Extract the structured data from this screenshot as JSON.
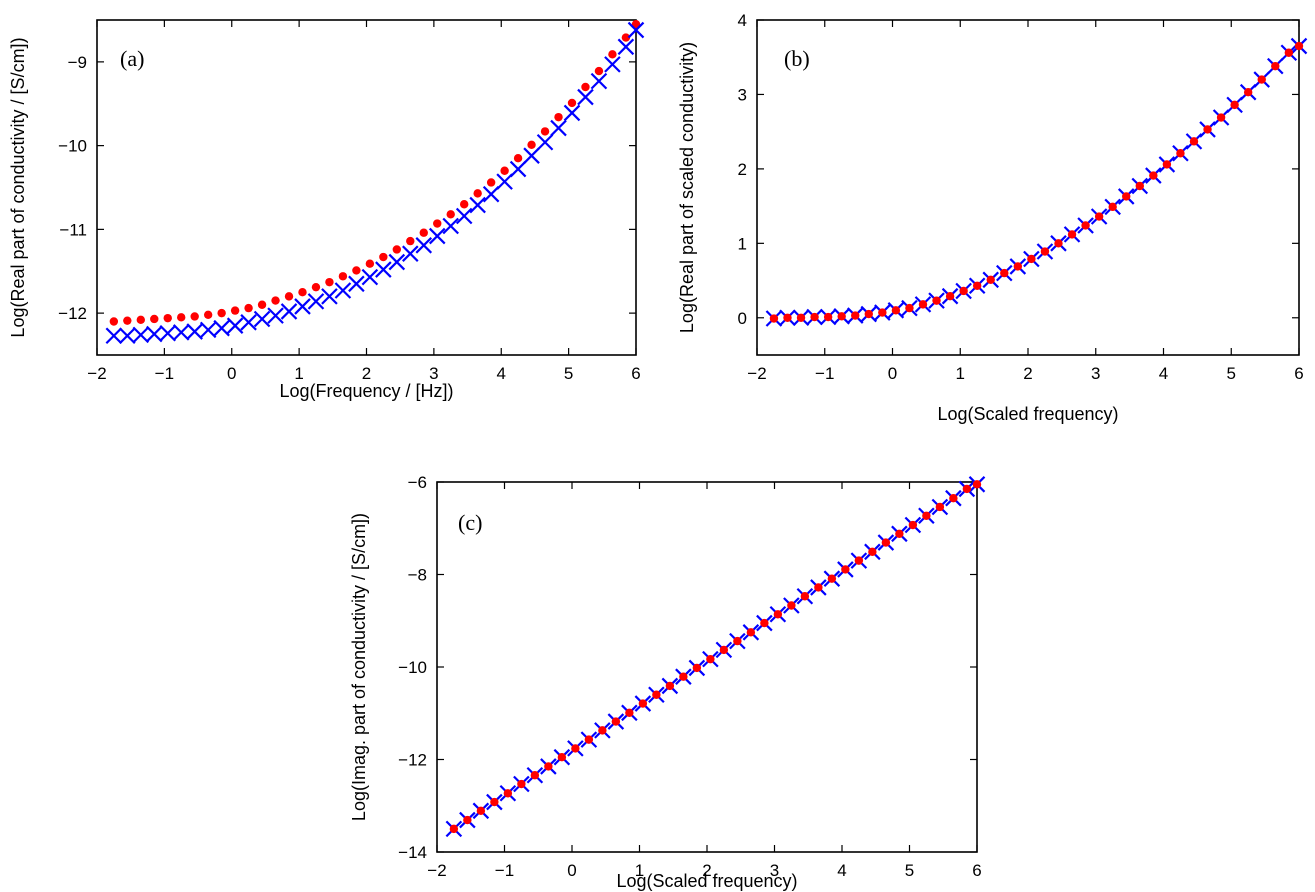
{
  "chart_data": [
    {
      "type": "scatter",
      "panel_label": "(a)",
      "title": "",
      "xlabel": "Log(Frequency / [Hz])",
      "ylabel": "Log(Real part of conductivity / [S/cm])",
      "xlim": [
        -2,
        6
      ],
      "ylim": [
        -12.5,
        -8.5
      ],
      "xticks": [
        "−2",
        "−1",
        "0",
        "1",
        "2",
        "3",
        "4",
        "5",
        "6"
      ],
      "yticks": [
        "−12",
        "−11",
        "−10",
        "−9"
      ],
      "series": [
        {
          "marker": "dot",
          "color": "#ff0000",
          "x": [
            -1.75,
            -1.55,
            -1.35,
            -1.15,
            -0.95,
            -0.75,
            -0.55,
            -0.35,
            -0.15,
            0.05,
            0.25,
            0.45,
            0.65,
            0.85,
            1.05,
            1.25,
            1.45,
            1.65,
            1.85,
            2.05,
            2.25,
            2.45,
            2.65,
            2.85,
            3.05,
            3.25,
            3.45,
            3.65,
            3.85,
            4.05,
            4.25,
            4.45,
            4.65,
            4.85,
            5.05,
            5.25,
            5.45,
            5.65,
            5.85,
            6.0
          ],
          "y": [
            -12.1,
            -12.09,
            -12.08,
            -12.07,
            -12.06,
            -12.05,
            -12.04,
            -12.02,
            -12.0,
            -11.97,
            -11.94,
            -11.9,
            -11.85,
            -11.8,
            -11.75,
            -11.69,
            -11.63,
            -11.56,
            -11.49,
            -11.41,
            -11.33,
            -11.24,
            -11.14,
            -11.04,
            -10.93,
            -10.82,
            -10.7,
            -10.57,
            -10.44,
            -10.3,
            -10.15,
            -9.99,
            -9.83,
            -9.66,
            -9.49,
            -9.3,
            -9.11,
            -8.91,
            -8.71,
            -8.55
          ]
        },
        {
          "marker": "cross",
          "color": "#0000ff",
          "x": [
            -1.75,
            -1.55,
            -1.35,
            -1.15,
            -0.95,
            -0.75,
            -0.55,
            -0.35,
            -0.15,
            0.05,
            0.25,
            0.45,
            0.65,
            0.85,
            1.05,
            1.25,
            1.45,
            1.65,
            1.85,
            2.05,
            2.25,
            2.45,
            2.65,
            2.85,
            3.05,
            3.25,
            3.45,
            3.65,
            3.85,
            4.05,
            4.25,
            4.45,
            4.65,
            4.85,
            5.05,
            5.25,
            5.45,
            5.65,
            5.85,
            6.0
          ],
          "y": [
            -12.27,
            -12.27,
            -12.26,
            -12.25,
            -12.24,
            -12.23,
            -12.22,
            -12.2,
            -12.18,
            -12.15,
            -12.11,
            -12.07,
            -12.03,
            -11.98,
            -11.92,
            -11.86,
            -11.8,
            -11.73,
            -11.65,
            -11.57,
            -11.48,
            -11.39,
            -11.29,
            -11.19,
            -11.08,
            -10.96,
            -10.84,
            -10.71,
            -10.58,
            -10.43,
            -10.28,
            -10.12,
            -9.96,
            -9.79,
            -9.61,
            -9.42,
            -9.23,
            -9.03,
            -8.82,
            -8.62
          ]
        }
      ]
    },
    {
      "type": "scatter",
      "panel_label": "(b)",
      "title": "",
      "xlabel": "Log(Scaled frequency)",
      "ylabel": "Log(Real part of scaled conductivity)",
      "xlim": [
        -2,
        6
      ],
      "ylim": [
        -0.5,
        4
      ],
      "xticks": [
        "−2",
        "−1",
        "0",
        "1",
        "2",
        "3",
        "4",
        "5",
        "6"
      ],
      "yticks": [
        "0",
        "1",
        "2",
        "3",
        "4"
      ],
      "series": [
        {
          "marker": "cross",
          "color": "#0000ff",
          "x": [
            -1.75,
            -1.55,
            -1.35,
            -1.15,
            -0.95,
            -0.75,
            -0.55,
            -0.35,
            -0.15,
            0.05,
            0.25,
            0.45,
            0.65,
            0.85,
            1.05,
            1.25,
            1.45,
            1.65,
            1.85,
            2.05,
            2.25,
            2.45,
            2.65,
            2.85,
            3.05,
            3.25,
            3.45,
            3.65,
            3.85,
            4.05,
            4.25,
            4.45,
            4.65,
            4.85,
            5.05,
            5.25,
            5.45,
            5.65,
            5.85,
            6.0
          ],
          "y": [
            -0.01,
            0.0,
            0.0,
            0.01,
            0.01,
            0.02,
            0.03,
            0.05,
            0.07,
            0.1,
            0.13,
            0.18,
            0.23,
            0.29,
            0.36,
            0.43,
            0.51,
            0.6,
            0.69,
            0.79,
            0.89,
            1.0,
            1.12,
            1.24,
            1.36,
            1.49,
            1.63,
            1.77,
            1.91,
            2.06,
            2.21,
            2.37,
            2.53,
            2.69,
            2.86,
            3.03,
            3.2,
            3.38,
            3.56,
            3.65
          ]
        },
        {
          "marker": "dot",
          "color": "#ff0000",
          "x": [
            -1.75,
            -1.55,
            -1.35,
            -1.15,
            -0.95,
            -0.75,
            -0.55,
            -0.35,
            -0.15,
            0.05,
            0.25,
            0.45,
            0.65,
            0.85,
            1.05,
            1.25,
            1.45,
            1.65,
            1.85,
            2.05,
            2.25,
            2.45,
            2.65,
            2.85,
            3.05,
            3.25,
            3.45,
            3.65,
            3.85,
            4.05,
            4.25,
            4.45,
            4.65,
            4.85,
            5.05,
            5.25,
            5.45,
            5.65,
            5.85,
            6.0
          ],
          "y": [
            -0.01,
            0.0,
            0.0,
            0.01,
            0.01,
            0.02,
            0.03,
            0.05,
            0.07,
            0.1,
            0.13,
            0.18,
            0.23,
            0.29,
            0.36,
            0.43,
            0.51,
            0.6,
            0.69,
            0.79,
            0.89,
            1.0,
            1.12,
            1.24,
            1.36,
            1.49,
            1.63,
            1.77,
            1.91,
            2.06,
            2.21,
            2.37,
            2.53,
            2.69,
            2.86,
            3.03,
            3.2,
            3.38,
            3.56,
            3.65
          ]
        }
      ]
    },
    {
      "type": "scatter",
      "panel_label": "(c)",
      "title": "",
      "xlabel": "Log(Scaled frequency)",
      "ylabel": "Log(Imag. part of conductivity / [S/cm])",
      "xlim": [
        -2,
        6
      ],
      "ylim": [
        -14,
        -6
      ],
      "xticks": [
        "−2",
        "−1",
        "0",
        "1",
        "2",
        "3",
        "4",
        "5",
        "6"
      ],
      "yticks": [
        "−14",
        "−12",
        "−10",
        "−8",
        "−6"
      ],
      "series": [
        {
          "marker": "cross",
          "color": "#0000ff",
          "x": [
            -1.75,
            -1.55,
            -1.35,
            -1.15,
            -0.95,
            -0.75,
            -0.55,
            -0.35,
            -0.15,
            0.05,
            0.25,
            0.45,
            0.65,
            0.85,
            1.05,
            1.25,
            1.45,
            1.65,
            1.85,
            2.05,
            2.25,
            2.45,
            2.65,
            2.85,
            3.05,
            3.25,
            3.45,
            3.65,
            3.85,
            4.05,
            4.25,
            4.45,
            4.65,
            4.85,
            5.05,
            5.25,
            5.45,
            5.65,
            5.85,
            6.0
          ],
          "y": [
            -13.5,
            -13.31,
            -13.11,
            -12.92,
            -12.73,
            -12.53,
            -12.34,
            -12.15,
            -11.95,
            -11.76,
            -11.57,
            -11.37,
            -11.18,
            -10.99,
            -10.79,
            -10.6,
            -10.41,
            -10.21,
            -10.02,
            -9.83,
            -9.63,
            -9.44,
            -9.25,
            -9.05,
            -8.86,
            -8.67,
            -8.47,
            -8.28,
            -8.09,
            -7.89,
            -7.7,
            -7.51,
            -7.31,
            -7.12,
            -6.93,
            -6.73,
            -6.54,
            -6.35,
            -6.15,
            -6.05
          ]
        },
        {
          "marker": "dot",
          "color": "#ff0000",
          "x": [
            -1.75,
            -1.55,
            -1.35,
            -1.15,
            -0.95,
            -0.75,
            -0.55,
            -0.35,
            -0.15,
            0.05,
            0.25,
            0.45,
            0.65,
            0.85,
            1.05,
            1.25,
            1.45,
            1.65,
            1.85,
            2.05,
            2.25,
            2.45,
            2.65,
            2.85,
            3.05,
            3.25,
            3.45,
            3.65,
            3.85,
            4.05,
            4.25,
            4.45,
            4.65,
            4.85,
            5.05,
            5.25,
            5.45,
            5.65,
            5.85,
            6.0
          ],
          "y": [
            -13.5,
            -13.31,
            -13.11,
            -12.92,
            -12.73,
            -12.53,
            -12.34,
            -12.15,
            -11.95,
            -11.76,
            -11.57,
            -11.37,
            -11.18,
            -10.99,
            -10.79,
            -10.6,
            -10.41,
            -10.21,
            -10.02,
            -9.83,
            -9.63,
            -9.44,
            -9.25,
            -9.05,
            -8.86,
            -8.67,
            -8.47,
            -8.28,
            -8.09,
            -7.89,
            -7.7,
            -7.51,
            -7.31,
            -7.12,
            -6.93,
            -6.73,
            -6.54,
            -6.35,
            -6.15,
            -6.05
          ]
        }
      ]
    }
  ]
}
